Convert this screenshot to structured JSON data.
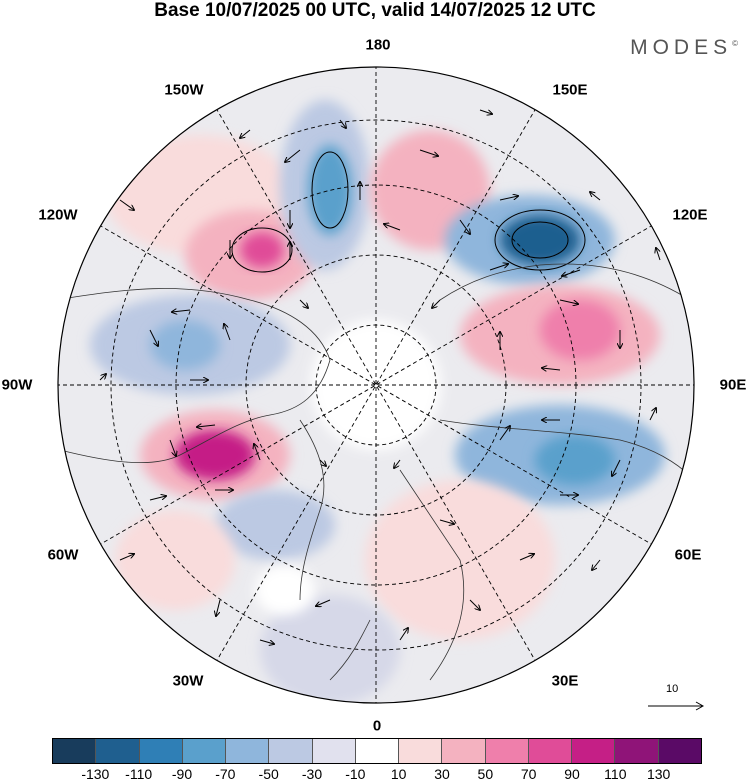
{
  "title": "Base 10/07/2025 00 UTC, valid 14/07/2025 12 UTC",
  "brand": "MODES",
  "brand_mark": "©",
  "lon_labels": {
    "n180": "180",
    "w150": "150W",
    "e150": "150E",
    "w120": "120W",
    "e120": "120E",
    "w90": "90W",
    "e90": "90E",
    "w60": "60W",
    "e60": "60E",
    "w30": "30W",
    "e30": "30E",
    "s0": "0"
  },
  "reference_vector": "10",
  "colorbar": {
    "colors": [
      "#183c5c",
      "#1f5f8f",
      "#2f7fb6",
      "#5aa0cc",
      "#8fb6dc",
      "#bcc9e3",
      "#e1e1ee",
      "#ffffff",
      "#f9dcdc",
      "#f4b2c0",
      "#ef7fab",
      "#e04c98",
      "#c51f86",
      "#8f1478",
      "#5a0a66"
    ],
    "ticks": [
      "-130",
      "-110",
      "-90",
      "-70",
      "-50",
      "-30",
      "-10",
      "10",
      "30",
      "50",
      "70",
      "90",
      "110",
      "130"
    ]
  }
}
